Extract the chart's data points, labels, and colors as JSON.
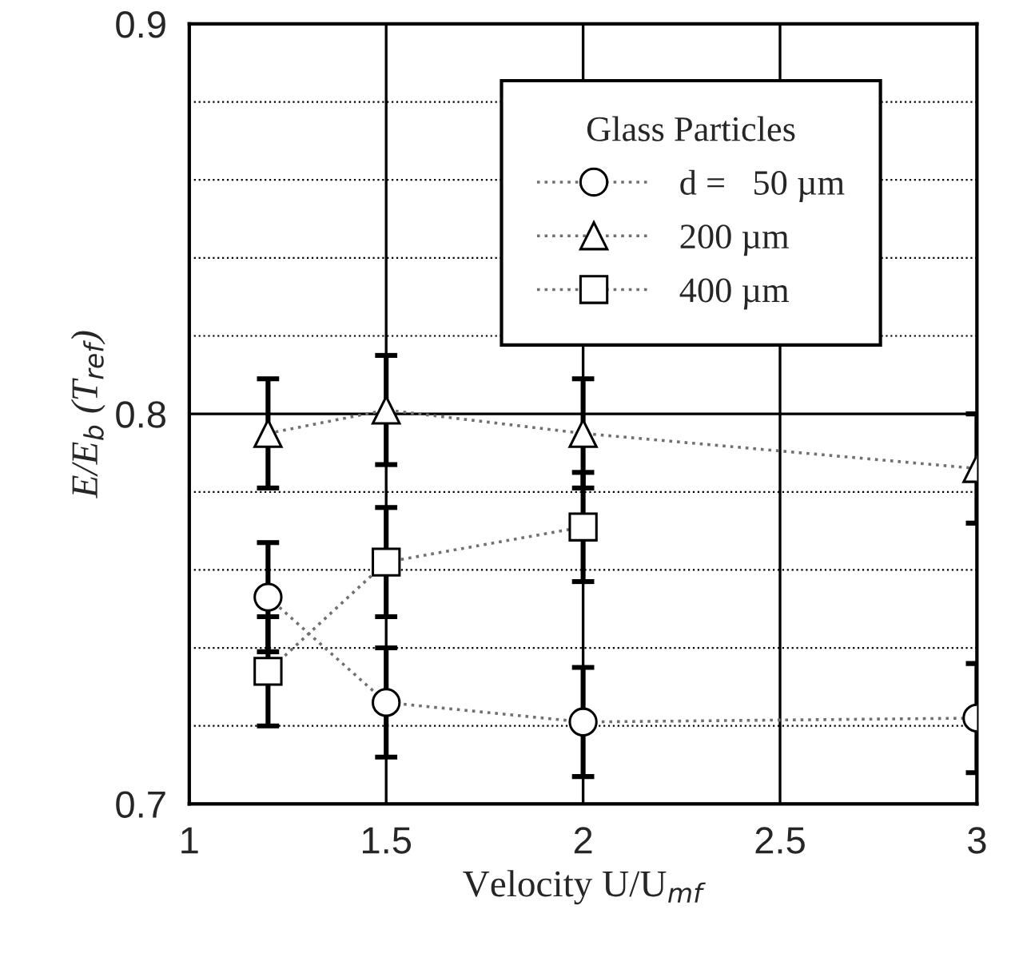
{
  "chart_data": {
    "type": "line",
    "xlabel": "Velocity U/U$_{mf}$",
    "ylabel": "E/E$_{b}$ (T$_{ref}$)",
    "legend_title": "Glass Particles",
    "x": [
      1.2,
      1.5,
      2,
      3
    ],
    "series": [
      {
        "name": "d =   50 µm",
        "color": "#000000",
        "marker": "circle",
        "values": [
          0.753,
          0.726,
          0.721,
          0.722
        ],
        "errors": [
          0.014,
          0.014,
          0.014,
          0.014
        ]
      },
      {
        "name": "200 µm",
        "color": "#000000",
        "marker": "triangle",
        "values": [
          0.795,
          0.801,
          0.795,
          0.786
        ],
        "errors": [
          0.014,
          0.014,
          0.014,
          0.014
        ]
      },
      {
        "name": "400 µm",
        "color": "#000000",
        "marker": "square",
        "values": [
          0.734,
          0.762,
          0.771,
          null
        ],
        "errors": [
          0.014,
          0.014,
          0.014,
          null
        ]
      }
    ],
    "line_style": "dotted",
    "xlim": [
      1,
      3
    ],
    "xticks": [
      1,
      1.5,
      2,
      2.5,
      3
    ],
    "ylim": [
      0.7,
      0.9
    ],
    "yticks": [
      0.7,
      {
        "value": 0.72,
        "label": null
      },
      {
        "value": 0.74,
        "label": null
      },
      {
        "value": 0.76,
        "label": null
      },
      {
        "value": 0.78,
        "label": null
      },
      0.8,
      {
        "value": 0.82,
        "label": null
      },
      {
        "value": 0.84,
        "label": null
      },
      {
        "value": 0.86,
        "label": null
      },
      {
        "value": 0.88,
        "label": null
      },
      0.9
    ],
    "grid": true,
    "legend": "top right"
  }
}
